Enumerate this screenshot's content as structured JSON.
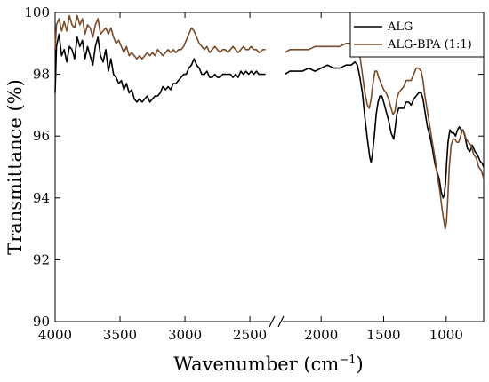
{
  "chart_data": {
    "type": "line",
    "xlabel": "Wavenumber (cm",
    "xlabel_sup": "−1",
    "xlabel_close": ")",
    "ylabel": "Transmittance (%)",
    "xlim": [
      4000,
      700
    ],
    "ylim": [
      90,
      100
    ],
    "axis_break": [
      2350,
      2300
    ],
    "x_ticks": [
      4000,
      3500,
      3000,
      2500,
      2000,
      1500,
      1000
    ],
    "x_tick_labels": [
      "4000",
      "3500",
      "3000",
      "2500",
      "2000",
      "1500",
      "1000"
    ],
    "y_ticks": [
      90,
      92,
      94,
      96,
      98,
      100
    ],
    "y_tick_labels": [
      "90",
      "92",
      "94",
      "96",
      "98",
      "100"
    ],
    "grid": false,
    "legend_position": "top-right",
    "series": [
      {
        "name": "ALG",
        "color": "#000000",
        "points": [
          [
            4000,
            97.4
          ],
          [
            3990,
            98.9
          ],
          [
            3970,
            99.3
          ],
          [
            3950,
            98.6
          ],
          [
            3930,
            98.8
          ],
          [
            3910,
            98.4
          ],
          [
            3890,
            98.9
          ],
          [
            3870,
            98.8
          ],
          [
            3850,
            98.5
          ],
          [
            3830,
            99.2
          ],
          [
            3810,
            98.9
          ],
          [
            3790,
            99.1
          ],
          [
            3770,
            98.5
          ],
          [
            3750,
            98.9
          ],
          [
            3730,
            98.6
          ],
          [
            3710,
            98.3
          ],
          [
            3690,
            98.9
          ],
          [
            3670,
            99.2
          ],
          [
            3650,
            98.6
          ],
          [
            3630,
            98.4
          ],
          [
            3610,
            98.8
          ],
          [
            3590,
            98.1
          ],
          [
            3570,
            98.5
          ],
          [
            3550,
            98.0
          ],
          [
            3530,
            97.9
          ],
          [
            3510,
            97.7
          ],
          [
            3490,
            97.8
          ],
          [
            3470,
            97.5
          ],
          [
            3450,
            97.7
          ],
          [
            3430,
            97.4
          ],
          [
            3410,
            97.5
          ],
          [
            3390,
            97.2
          ],
          [
            3370,
            97.1
          ],
          [
            3350,
            97.2
          ],
          [
            3330,
            97.1
          ],
          [
            3310,
            97.2
          ],
          [
            3290,
            97.3
          ],
          [
            3270,
            97.1
          ],
          [
            3250,
            97.2
          ],
          [
            3230,
            97.3
          ],
          [
            3210,
            97.3
          ],
          [
            3190,
            97.4
          ],
          [
            3170,
            97.6
          ],
          [
            3150,
            97.5
          ],
          [
            3130,
            97.6
          ],
          [
            3110,
            97.5
          ],
          [
            3090,
            97.7
          ],
          [
            3070,
            97.7
          ],
          [
            3050,
            97.8
          ],
          [
            3030,
            97.9
          ],
          [
            3010,
            98.0
          ],
          [
            2990,
            98.0
          ],
          [
            2970,
            98.2
          ],
          [
            2950,
            98.3
          ],
          [
            2930,
            98.5
          ],
          [
            2910,
            98.3
          ],
          [
            2890,
            98.2
          ],
          [
            2870,
            98.0
          ],
          [
            2850,
            98.0
          ],
          [
            2830,
            98.1
          ],
          [
            2810,
            97.9
          ],
          [
            2790,
            97.9
          ],
          [
            2770,
            98.0
          ],
          [
            2750,
            97.9
          ],
          [
            2730,
            97.9
          ],
          [
            2710,
            98.0
          ],
          [
            2690,
            98.0
          ],
          [
            2670,
            98.0
          ],
          [
            2650,
            98.0
          ],
          [
            2630,
            97.9
          ],
          [
            2610,
            98.0
          ],
          [
            2590,
            97.9
          ],
          [
            2570,
            98.1
          ],
          [
            2550,
            98.0
          ],
          [
            2530,
            98.1
          ],
          [
            2510,
            98.0
          ],
          [
            2490,
            98.1
          ],
          [
            2470,
            98.0
          ],
          [
            2450,
            98.1
          ],
          [
            2430,
            98.0
          ],
          [
            2400,
            98.0
          ],
          [
            2380,
            98.0
          ]
        ],
        "points_right": [
          [
            2290,
            98.0
          ],
          [
            2250,
            98.1
          ],
          [
            2200,
            98.1
          ],
          [
            2150,
            98.1
          ],
          [
            2100,
            98.2
          ],
          [
            2050,
            98.1
          ],
          [
            2000,
            98.2
          ],
          [
            1950,
            98.3
          ],
          [
            1900,
            98.2
          ],
          [
            1850,
            98.2
          ],
          [
            1800,
            98.3
          ],
          [
            1760,
            98.3
          ],
          [
            1730,
            98.4
          ],
          [
            1710,
            98.3
          ],
          [
            1690,
            97.9
          ],
          [
            1670,
            97.4
          ],
          [
            1650,
            96.6
          ],
          [
            1630,
            95.9
          ],
          [
            1610,
            95.3
          ],
          [
            1600,
            95.15
          ],
          [
            1590,
            95.4
          ],
          [
            1575,
            96.0
          ],
          [
            1560,
            96.7
          ],
          [
            1545,
            97.1
          ],
          [
            1530,
            97.3
          ],
          [
            1515,
            97.3
          ],
          [
            1500,
            97.1
          ],
          [
            1480,
            96.8
          ],
          [
            1460,
            96.5
          ],
          [
            1440,
            96.1
          ],
          [
            1420,
            95.9
          ],
          [
            1410,
            96.2
          ],
          [
            1395,
            96.7
          ],
          [
            1380,
            96.9
          ],
          [
            1360,
            96.9
          ],
          [
            1340,
            96.9
          ],
          [
            1320,
            97.1
          ],
          [
            1300,
            97.1
          ],
          [
            1280,
            97.0
          ],
          [
            1260,
            97.2
          ],
          [
            1240,
            97.3
          ],
          [
            1220,
            97.4
          ],
          [
            1200,
            97.4
          ],
          [
            1185,
            97.2
          ],
          [
            1170,
            96.8
          ],
          [
            1150,
            96.3
          ],
          [
            1130,
            96.0
          ],
          [
            1110,
            95.6
          ],
          [
            1090,
            95.1
          ],
          [
            1070,
            94.8
          ],
          [
            1055,
            94.6
          ],
          [
            1040,
            94.2
          ],
          [
            1025,
            94.0
          ],
          [
            1015,
            94.1
          ],
          [
            1005,
            94.5
          ],
          [
            995,
            95.2
          ],
          [
            985,
            95.8
          ],
          [
            970,
            96.2
          ],
          [
            955,
            96.1
          ],
          [
            940,
            96.1
          ],
          [
            925,
            96.0
          ],
          [
            910,
            96.2
          ],
          [
            895,
            96.3
          ],
          [
            880,
            96.2
          ],
          [
            865,
            96.2
          ],
          [
            850,
            96.0
          ],
          [
            830,
            95.6
          ],
          [
            810,
            95.5
          ],
          [
            790,
            95.7
          ],
          [
            770,
            95.5
          ],
          [
            750,
            95.4
          ],
          [
            730,
            95.2
          ],
          [
            710,
            95.1
          ],
          [
            700,
            95.0
          ]
        ]
      },
      {
        "name": "ALG-BPA (1:1)",
        "color": "#7a4b2a",
        "points": [
          [
            4000,
            98.8
          ],
          [
            3990,
            99.6
          ],
          [
            3970,
            99.8
          ],
          [
            3950,
            99.4
          ],
          [
            3930,
            99.7
          ],
          [
            3910,
            99.4
          ],
          [
            3890,
            99.9
          ],
          [
            3870,
            99.6
          ],
          [
            3850,
            99.5
          ],
          [
            3830,
            99.9
          ],
          [
            3810,
            99.6
          ],
          [
            3790,
            99.8
          ],
          [
            3770,
            99.3
          ],
          [
            3750,
            99.6
          ],
          [
            3730,
            99.5
          ],
          [
            3710,
            99.2
          ],
          [
            3690,
            99.6
          ],
          [
            3670,
            99.8
          ],
          [
            3650,
            99.3
          ],
          [
            3630,
            99.4
          ],
          [
            3610,
            99.5
          ],
          [
            3590,
            99.3
          ],
          [
            3570,
            99.5
          ],
          [
            3550,
            99.2
          ],
          [
            3530,
            99.0
          ],
          [
            3510,
            99.1
          ],
          [
            3490,
            98.9
          ],
          [
            3470,
            98.7
          ],
          [
            3450,
            98.9
          ],
          [
            3430,
            98.6
          ],
          [
            3410,
            98.7
          ],
          [
            3390,
            98.6
          ],
          [
            3370,
            98.5
          ],
          [
            3350,
            98.6
          ],
          [
            3330,
            98.5
          ],
          [
            3310,
            98.6
          ],
          [
            3290,
            98.7
          ],
          [
            3270,
            98.6
          ],
          [
            3250,
            98.7
          ],
          [
            3230,
            98.6
          ],
          [
            3210,
            98.8
          ],
          [
            3190,
            98.7
          ],
          [
            3170,
            98.6
          ],
          [
            3150,
            98.7
          ],
          [
            3130,
            98.8
          ],
          [
            3110,
            98.7
          ],
          [
            3090,
            98.8
          ],
          [
            3070,
            98.7
          ],
          [
            3050,
            98.8
          ],
          [
            3030,
            98.8
          ],
          [
            3010,
            98.9
          ],
          [
            2990,
            99.1
          ],
          [
            2970,
            99.3
          ],
          [
            2950,
            99.5
          ],
          [
            2930,
            99.4
          ],
          [
            2910,
            99.2
          ],
          [
            2890,
            99.0
          ],
          [
            2870,
            98.9
          ],
          [
            2850,
            98.8
          ],
          [
            2830,
            98.9
          ],
          [
            2810,
            98.7
          ],
          [
            2790,
            98.8
          ],
          [
            2770,
            98.9
          ],
          [
            2750,
            98.8
          ],
          [
            2730,
            98.7
          ],
          [
            2710,
            98.8
          ],
          [
            2690,
            98.8
          ],
          [
            2670,
            98.7
          ],
          [
            2650,
            98.8
          ],
          [
            2630,
            98.9
          ],
          [
            2610,
            98.8
          ],
          [
            2590,
            98.7
          ],
          [
            2570,
            98.8
          ],
          [
            2550,
            98.9
          ],
          [
            2530,
            98.8
          ],
          [
            2510,
            98.8
          ],
          [
            2490,
            98.9
          ],
          [
            2470,
            98.8
          ],
          [
            2450,
            98.8
          ],
          [
            2430,
            98.7
          ],
          [
            2400,
            98.8
          ],
          [
            2380,
            98.8
          ]
        ],
        "points_right": [
          [
            2290,
            98.7
          ],
          [
            2250,
            98.8
          ],
          [
            2200,
            98.8
          ],
          [
            2150,
            98.8
          ],
          [
            2100,
            98.8
          ],
          [
            2050,
            98.9
          ],
          [
            2000,
            98.9
          ],
          [
            1950,
            98.9
          ],
          [
            1900,
            98.9
          ],
          [
            1850,
            98.9
          ],
          [
            1800,
            99.0
          ],
          [
            1760,
            99.0
          ],
          [
            1730,
            99.1
          ],
          [
            1710,
            99.0
          ],
          [
            1690,
            98.6
          ],
          [
            1670,
            98.0
          ],
          [
            1650,
            97.4
          ],
          [
            1630,
            97.0
          ],
          [
            1615,
            96.9
          ],
          [
            1600,
            97.2
          ],
          [
            1585,
            97.7
          ],
          [
            1570,
            98.1
          ],
          [
            1555,
            98.1
          ],
          [
            1540,
            97.9
          ],
          [
            1520,
            97.7
          ],
          [
            1500,
            97.5
          ],
          [
            1480,
            97.4
          ],
          [
            1460,
            97.2
          ],
          [
            1440,
            96.9
          ],
          [
            1425,
            96.7
          ],
          [
            1410,
            96.8
          ],
          [
            1395,
            97.2
          ],
          [
            1380,
            97.4
          ],
          [
            1360,
            97.5
          ],
          [
            1340,
            97.6
          ],
          [
            1320,
            97.8
          ],
          [
            1300,
            97.8
          ],
          [
            1280,
            97.8
          ],
          [
            1260,
            98.0
          ],
          [
            1240,
            98.2
          ],
          [
            1220,
            98.2
          ],
          [
            1200,
            98.1
          ],
          [
            1185,
            97.8
          ],
          [
            1170,
            97.3
          ],
          [
            1150,
            96.8
          ],
          [
            1130,
            96.3
          ],
          [
            1110,
            95.8
          ],
          [
            1090,
            95.3
          ],
          [
            1070,
            94.7
          ],
          [
            1050,
            94.2
          ],
          [
            1035,
            93.7
          ],
          [
            1020,
            93.3
          ],
          [
            1008,
            93.0
          ],
          [
            998,
            93.2
          ],
          [
            988,
            93.9
          ],
          [
            975,
            95.0
          ],
          [
            960,
            95.7
          ],
          [
            945,
            95.9
          ],
          [
            930,
            95.9
          ],
          [
            915,
            95.8
          ],
          [
            900,
            95.8
          ],
          [
            885,
            96.0
          ],
          [
            870,
            96.2
          ],
          [
            855,
            96.1
          ],
          [
            840,
            95.9
          ],
          [
            820,
            95.8
          ],
          [
            800,
            95.7
          ],
          [
            780,
            95.4
          ],
          [
            760,
            95.3
          ],
          [
            740,
            95.0
          ],
          [
            720,
            94.9
          ],
          [
            705,
            94.7
          ],
          [
            700,
            94.6
          ]
        ]
      }
    ]
  }
}
